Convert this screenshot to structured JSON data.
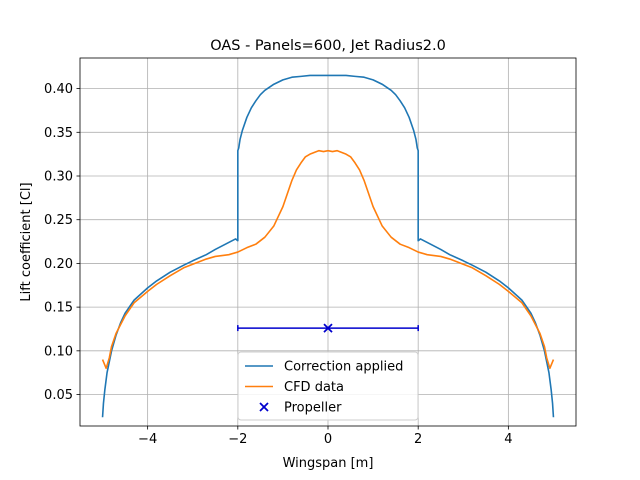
{
  "chart_data": {
    "type": "line",
    "title": "OAS - Panels=600, Jet Radius2.0",
    "xlabel": "Wingspan [m]",
    "ylabel": "Lift coefficient [Cl]",
    "xlim": [
      -5.5,
      5.5
    ],
    "ylim": [
      0.014,
      0.435
    ],
    "xticks": [
      -4,
      -2,
      0,
      2,
      4
    ],
    "xtick_labels": [
      "−4",
      "−2",
      "0",
      "2",
      "4"
    ],
    "yticks": [
      0.05,
      0.1,
      0.15,
      0.2,
      0.25,
      0.3,
      0.35,
      0.4
    ],
    "ytick_labels": [
      "0.05",
      "0.10",
      "0.15",
      "0.20",
      "0.25",
      "0.30",
      "0.35",
      "0.40"
    ],
    "grid": true,
    "legend_position": "lower center",
    "series": [
      {
        "name": "Correction applied",
        "color": "#1f77b4",
        "x": [
          -5.0,
          -4.98,
          -4.95,
          -4.9,
          -4.8,
          -4.7,
          -4.6,
          -4.5,
          -4.3,
          -4.0,
          -3.8,
          -3.5,
          -3.2,
          -3.0,
          -2.7,
          -2.5,
          -2.2,
          -2.05,
          -2.0,
          -2.0,
          -1.98,
          -1.95,
          -1.9,
          -1.8,
          -1.7,
          -1.6,
          -1.5,
          -1.4,
          -1.2,
          -1.0,
          -0.8,
          -0.6,
          -0.4,
          -0.2,
          0.0,
          0.2,
          0.4,
          0.6,
          0.8,
          1.0,
          1.2,
          1.4,
          1.5,
          1.6,
          1.7,
          1.8,
          1.9,
          1.95,
          1.98,
          2.0,
          2.0,
          2.05,
          2.2,
          2.5,
          2.7,
          3.0,
          3.2,
          3.5,
          3.8,
          4.0,
          4.3,
          4.5,
          4.6,
          4.7,
          4.8,
          4.9,
          4.95,
          4.98,
          5.0
        ],
        "y": [
          0.024,
          0.04,
          0.055,
          0.075,
          0.1,
          0.118,
          0.132,
          0.143,
          0.158,
          0.172,
          0.18,
          0.19,
          0.198,
          0.203,
          0.21,
          0.216,
          0.224,
          0.228,
          0.226,
          0.329,
          0.332,
          0.342,
          0.352,
          0.367,
          0.378,
          0.386,
          0.393,
          0.398,
          0.405,
          0.41,
          0.413,
          0.414,
          0.415,
          0.415,
          0.415,
          0.415,
          0.415,
          0.414,
          0.413,
          0.41,
          0.405,
          0.398,
          0.393,
          0.386,
          0.378,
          0.367,
          0.352,
          0.342,
          0.332,
          0.329,
          0.226,
          0.228,
          0.224,
          0.216,
          0.21,
          0.203,
          0.198,
          0.19,
          0.18,
          0.172,
          0.158,
          0.143,
          0.132,
          0.118,
          0.1,
          0.075,
          0.055,
          0.04,
          0.024
        ]
      },
      {
        "name": "CFD data",
        "color": "#ff7f0e",
        "x": [
          -5.0,
          -4.92,
          -4.85,
          -4.8,
          -4.7,
          -4.5,
          -4.3,
          -4.0,
          -3.8,
          -3.5,
          -3.2,
          -3.0,
          -2.7,
          -2.5,
          -2.2,
          -2.0,
          -1.8,
          -1.6,
          -1.4,
          -1.2,
          -1.0,
          -0.9,
          -0.8,
          -0.7,
          -0.6,
          -0.5,
          -0.4,
          -0.3,
          -0.2,
          -0.1,
          0.0,
          0.1,
          0.2,
          0.3,
          0.4,
          0.5,
          0.6,
          0.7,
          0.8,
          0.9,
          1.0,
          1.2,
          1.4,
          1.6,
          1.8,
          2.0,
          2.2,
          2.5,
          2.7,
          3.0,
          3.2,
          3.5,
          3.8,
          4.0,
          4.3,
          4.5,
          4.7,
          4.8,
          4.85,
          4.92,
          5.0
        ],
        "y": [
          0.09,
          0.08,
          0.092,
          0.105,
          0.12,
          0.14,
          0.155,
          0.168,
          0.176,
          0.186,
          0.195,
          0.199,
          0.205,
          0.208,
          0.21,
          0.213,
          0.218,
          0.222,
          0.23,
          0.243,
          0.265,
          0.28,
          0.295,
          0.307,
          0.315,
          0.322,
          0.325,
          0.327,
          0.329,
          0.328,
          0.329,
          0.328,
          0.329,
          0.327,
          0.325,
          0.322,
          0.315,
          0.307,
          0.295,
          0.28,
          0.265,
          0.243,
          0.23,
          0.222,
          0.218,
          0.213,
          0.21,
          0.208,
          0.205,
          0.199,
          0.195,
          0.186,
          0.176,
          0.168,
          0.155,
          0.14,
          0.12,
          0.105,
          0.092,
          0.08,
          0.09
        ]
      },
      {
        "name": "Propeller",
        "color": "#0000cd",
        "type": "scatter",
        "marker": "x",
        "x": [
          0.0
        ],
        "y": [
          0.126
        ],
        "xerr": 2.0
      }
    ]
  }
}
